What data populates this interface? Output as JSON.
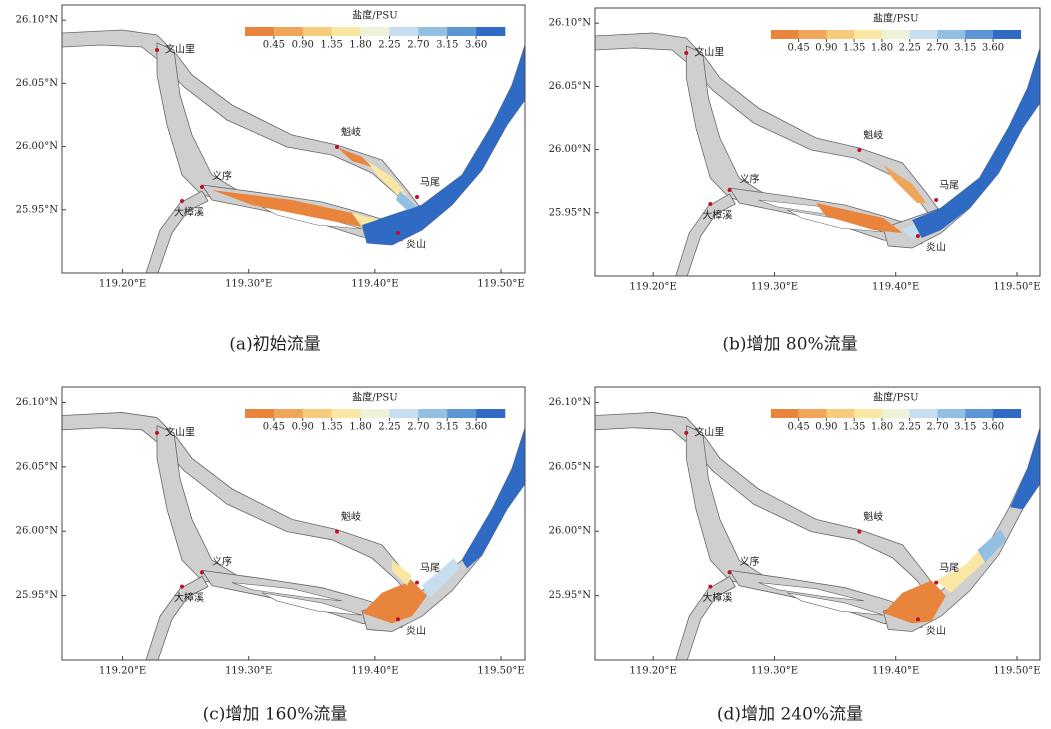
{
  "panels": [
    {
      "caption": "(a)初始流量"
    },
    {
      "caption": "(b)增加 80%流量"
    },
    {
      "caption": "(c)增加 160%流量"
    },
    {
      "caption": "(d)增加 240%流量"
    }
  ],
  "map": {
    "places": [
      "文山里",
      "魁岐",
      "马尾",
      "义序",
      "大樟溪",
      "炎山"
    ],
    "xlim": [
      119.152,
      119.519
    ],
    "ylim": [
      25.9,
      26.112
    ],
    "xticks": [
      {
        "value": 119.2,
        "label": "119.20°E"
      },
      {
        "value": 119.3,
        "label": "119.30°E"
      },
      {
        "value": 119.4,
        "label": "119.40°E"
      },
      {
        "value": 119.5,
        "label": "119.50°E"
      }
    ],
    "yticks": [
      {
        "value": 26.1,
        "label": "26.10°N"
      },
      {
        "value": 26.05,
        "label": "26.05°N"
      },
      {
        "value": 26.0,
        "label": "26.00°N"
      },
      {
        "value": 25.95,
        "label": "25.95°N"
      }
    ]
  },
  "colorbar": {
    "title": "盐度/PSU",
    "lim": [
      0,
      4.05
    ],
    "ticks": [
      0.45,
      {
        "value": 0.9,
        "label": "0.90"
      },
      1.35,
      {
        "value": 1.8,
        "label": "1.80"
      },
      2.25,
      {
        "value": 2.7,
        "label": "2.70"
      },
      3.15,
      {
        "value": 3.6,
        "label": "3.60"
      }
    ],
    "colors": [
      "#e8843c",
      "#f0a65a",
      "#f6cc7c",
      "#fbe7a4",
      "#eef2d8",
      "#c7def0",
      "#93bfe3",
      "#5b96d3",
      "#2f6bc4"
    ]
  }
}
